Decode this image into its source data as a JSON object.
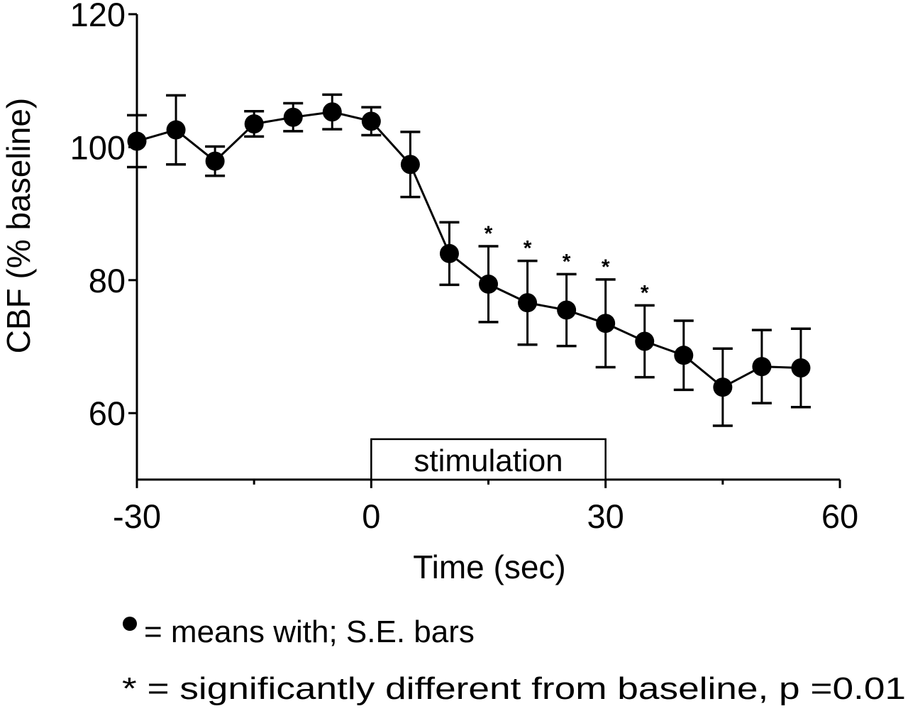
{
  "chart_data": {
    "type": "line",
    "title": "",
    "xlabel": "Time (sec)",
    "ylabel": "CBF (% baseline)",
    "xlim": [
      -30,
      60
    ],
    "ylim": [
      50,
      120
    ],
    "xticks": [
      -30,
      0,
      30,
      60
    ],
    "xticks_minor": [
      -15,
      15,
      45
    ],
    "yticks": [
      60,
      80,
      100,
      120
    ],
    "x_tick_labels": [
      "-30",
      "0",
      "30",
      "60"
    ],
    "y_tick_labels": [
      "60",
      "80",
      "100",
      "120"
    ],
    "grid": false,
    "series": [
      {
        "name": "means with; S.E. bars",
        "marker": "filled-circle",
        "color": "#000000",
        "x": [
          -30,
          -25,
          -20,
          -15,
          -10,
          -5,
          0,
          5,
          10,
          15,
          20,
          25,
          30,
          35,
          40,
          45,
          50,
          55
        ],
        "y": [
          100.9,
          102.6,
          97.9,
          103.5,
          104.5,
          105.3,
          103.9,
          97.4,
          84.0,
          79.4,
          76.6,
          75.5,
          73.5,
          70.8,
          68.7,
          63.9,
          67.0,
          66.8
        ],
        "se": [
          3.9,
          5.2,
          2.2,
          1.9,
          2.1,
          2.6,
          2.1,
          4.9,
          4.7,
          5.7,
          6.3,
          5.4,
          6.6,
          5.4,
          5.2,
          5.8,
          5.5,
          5.9
        ],
        "significant": [
          false,
          false,
          false,
          false,
          false,
          false,
          false,
          false,
          false,
          true,
          true,
          true,
          true,
          true,
          false,
          false,
          false,
          false
        ]
      }
    ],
    "annotations": [
      {
        "type": "span-box",
        "label": "stimulation",
        "x_start": 0,
        "x_end": 30
      }
    ],
    "significance_marker": "*",
    "legend": {
      "placement": "bottom",
      "entries": [
        {
          "symbol": "filled-circle",
          "text": "= means with; S.E. bars"
        },
        {
          "symbol": "*",
          "text": "* = significantly different from baseline, p =0.01"
        }
      ]
    }
  }
}
